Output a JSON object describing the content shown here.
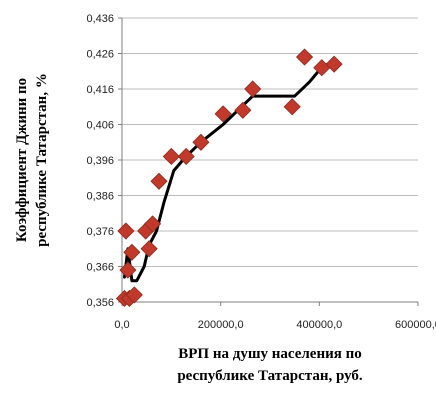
{
  "chart_data": {
    "type": "scatter",
    "title": "",
    "xlabel_lines": [
      "ВРП  на душу населения по",
      "республике Татарстан, руб."
    ],
    "ylabel_lines": [
      "Коэффициент Джини по",
      "республике Татарстан, %"
    ],
    "xlim": [
      0,
      600000
    ],
    "ylim": [
      0.356,
      0.436
    ],
    "x_ticks": [
      0,
      200000,
      400000,
      600000
    ],
    "x_tick_labels": [
      "0,0",
      "200000,0",
      "400000,0",
      "600000,0"
    ],
    "y_ticks": [
      0.356,
      0.366,
      0.376,
      0.386,
      0.396,
      0.406,
      0.416,
      0.426,
      0.436
    ],
    "y_tick_labels": [
      "0,356",
      "0,366",
      "0,376",
      "0,386",
      "0,396",
      "0,406",
      "0,416",
      "0,426",
      "0,436"
    ],
    "grid": "horizontal",
    "legend": "none",
    "series": [
      {
        "kind": "points",
        "marker": "diamond",
        "color": "#c0392b",
        "x": [
          5000,
          8000,
          12000,
          15000,
          20000,
          25000,
          48000,
          55000,
          62000,
          75000,
          100000,
          130000,
          160000,
          205000,
          245000,
          265000,
          345000,
          370000,
          405000,
          430000
        ],
        "y": [
          0.357,
          0.376,
          0.365,
          0.357,
          0.37,
          0.358,
          0.376,
          0.371,
          0.378,
          0.39,
          0.397,
          0.397,
          0.401,
          0.409,
          0.41,
          0.416,
          0.411,
          0.425,
          0.422,
          0.423
        ]
      },
      {
        "kind": "line",
        "color": "#000000",
        "x": [
          5000,
          12000,
          20000,
          30000,
          45000,
          55000,
          70000,
          85000,
          105000,
          130000,
          160000,
          205000,
          235000,
          265000,
          300000,
          350000,
          380000,
          410000,
          435000
        ],
        "y": [
          0.363,
          0.371,
          0.362,
          0.362,
          0.366,
          0.372,
          0.376,
          0.384,
          0.393,
          0.397,
          0.401,
          0.406,
          0.41,
          0.414,
          0.414,
          0.414,
          0.418,
          0.423,
          0.422
        ]
      }
    ]
  }
}
